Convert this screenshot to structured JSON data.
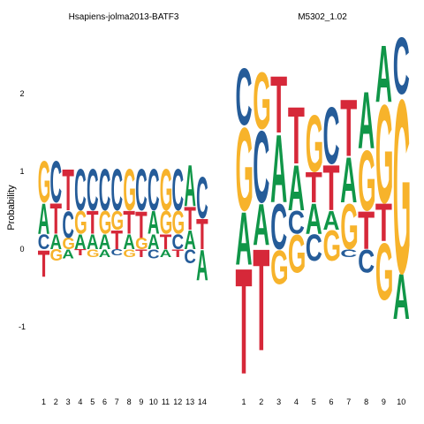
{
  "chart_data": {
    "type": "sequence-logo",
    "ylabel": "Probability",
    "ylim": [
      -1.75,
      2.8
    ],
    "yticks": [
      -1,
      0,
      1,
      2
    ],
    "colors": {
      "A": "#109648",
      "C": "#255C99",
      "G": "#F7B32B",
      "T": "#D62839"
    },
    "panels": [
      {
        "title": "Hsapiens-jolma2013-BATF3",
        "positions": [
          "1",
          "2",
          "3",
          "4",
          "5",
          "6",
          "7",
          "8",
          "9",
          "10",
          "11",
          "12",
          "13",
          "14"
        ],
        "columns": [
          [
            {
              "l": "T",
              "b": -0.35
            },
            {
              "l": "C",
              "b": 0.0
            },
            {
              "l": "A",
              "b": 0.2
            },
            {
              "l": "G",
              "b": 0.6
            }
          ],
          [
            {
              "l": "G",
              "b": -0.15
            },
            {
              "l": "A",
              "b": 0.0
            },
            {
              "l": "T",
              "b": 0.2
            },
            {
              "l": "C",
              "b": 0.6
            }
          ],
          [
            {
              "l": "A",
              "b": -0.12
            },
            {
              "l": "G",
              "b": 0.0
            },
            {
              "l": "C",
              "b": 0.15
            },
            {
              "l": "T",
              "b": 0.5
            }
          ],
          [
            {
              "l": "T",
              "b": -0.08
            },
            {
              "l": "A",
              "b": 0.0
            },
            {
              "l": "G",
              "b": 0.2
            },
            {
              "l": "C",
              "b": 0.5
            }
          ],
          [
            {
              "l": "G",
              "b": -0.1
            },
            {
              "l": "A",
              "b": 0.0
            },
            {
              "l": "T",
              "b": 0.2
            },
            {
              "l": "C",
              "b": 0.5
            }
          ],
          [
            {
              "l": "A",
              "b": -0.1
            },
            {
              "l": "A",
              "b": 0.0
            },
            {
              "l": "G",
              "b": 0.2
            },
            {
              "l": "C",
              "b": 0.5
            }
          ],
          [
            {
              "l": "C",
              "b": -0.08
            },
            {
              "l": "T",
              "b": 0.0
            },
            {
              "l": "G",
              "b": 0.25
            },
            {
              "l": "C",
              "b": 0.5
            }
          ],
          [
            {
              "l": "G",
              "b": -0.1
            },
            {
              "l": "A",
              "b": 0.0
            },
            {
              "l": "T",
              "b": 0.2
            },
            {
              "l": "G",
              "b": 0.5
            }
          ],
          [
            {
              "l": "T",
              "b": -0.1
            },
            {
              "l": "G",
              "b": 0.0
            },
            {
              "l": "T",
              "b": 0.15
            },
            {
              "l": "C",
              "b": 0.5
            }
          ],
          [
            {
              "l": "C",
              "b": -0.12
            },
            {
              "l": "A",
              "b": 0.0
            },
            {
              "l": "A",
              "b": 0.2
            },
            {
              "l": "C",
              "b": 0.5
            }
          ],
          [
            {
              "l": "A",
              "b": -0.1
            },
            {
              "l": "T",
              "b": 0.0
            },
            {
              "l": "G",
              "b": 0.2
            },
            {
              "l": "G",
              "b": 0.5
            }
          ],
          [
            {
              "l": "T",
              "b": -0.1
            },
            {
              "l": "C",
              "b": 0.0
            },
            {
              "l": "G",
              "b": 0.2
            },
            {
              "l": "C",
              "b": 0.5
            }
          ],
          [
            {
              "l": "C",
              "b": -0.18
            },
            {
              "l": "A",
              "b": 0.0
            },
            {
              "l": "T",
              "b": 0.25
            },
            {
              "l": "A",
              "b": 0.55
            }
          ],
          [
            {
              "l": "A",
              "b": -0.4
            },
            {
              "l": "T",
              "b": 0.0
            },
            {
              "l": "C",
              "b": 0.4
            }
          ]
        ]
      },
      {
        "title": "M5302_1.02",
        "positions": [
          "1",
          "2",
          "3",
          "4",
          "5",
          "6",
          "7",
          "8",
          "9",
          "10"
        ],
        "columns": [
          [
            {
              "l": "T",
              "b": -1.6
            },
            {
              "l": "A",
              "b": -0.2
            },
            {
              "l": "G",
              "b": 0.5
            },
            {
              "l": "C",
              "b": 1.6
            }
          ],
          [
            {
              "l": "T",
              "b": -1.3
            },
            {
              "l": "A",
              "b": 0.05
            },
            {
              "l": "C",
              "b": 0.6
            },
            {
              "l": "G",
              "b": 1.55
            }
          ],
          [
            {
              "l": "G",
              "b": -0.45
            },
            {
              "l": "C",
              "b": 0.0
            },
            {
              "l": "A",
              "b": 0.6
            },
            {
              "l": "T",
              "b": 1.5
            }
          ],
          [
            {
              "l": "G",
              "b": -0.3
            },
            {
              "l": "C",
              "b": 0.2
            },
            {
              "l": "A",
              "b": 0.5
            },
            {
              "l": "T",
              "b": 1.1
            }
          ],
          [
            {
              "l": "C",
              "b": -0.15
            },
            {
              "l": "A",
              "b": 0.2
            },
            {
              "l": "T",
              "b": 0.6
            },
            {
              "l": "G",
              "b": 1.0
            }
          ],
          [
            {
              "l": "G",
              "b": -0.15
            },
            {
              "l": "A",
              "b": 0.25
            },
            {
              "l": "T",
              "b": 0.5
            },
            {
              "l": "C",
              "b": 1.1
            }
          ],
          [
            {
              "l": "C",
              "b": -0.1
            },
            {
              "l": "G",
              "b": 0.0
            },
            {
              "l": "A",
              "b": 0.6
            },
            {
              "l": "T",
              "b": 1.2
            }
          ],
          [
            {
              "l": "C",
              "b": -0.3
            },
            {
              "l": "T",
              "b": 0.0
            },
            {
              "l": "G",
              "b": 0.5
            },
            {
              "l": "A",
              "b": 1.3
            }
          ],
          [
            {
              "l": "G",
              "b": -0.65
            },
            {
              "l": "T",
              "b": 0.1
            },
            {
              "l": "G",
              "b": 0.6
            },
            {
              "l": "A",
              "b": 1.9
            }
          ],
          [
            {
              "l": "A",
              "b": -0.9
            },
            {
              "l": "G",
              "b": -0.3
            },
            {
              "l": "C",
              "b": 2.0
            }
          ]
        ]
      }
    ]
  }
}
